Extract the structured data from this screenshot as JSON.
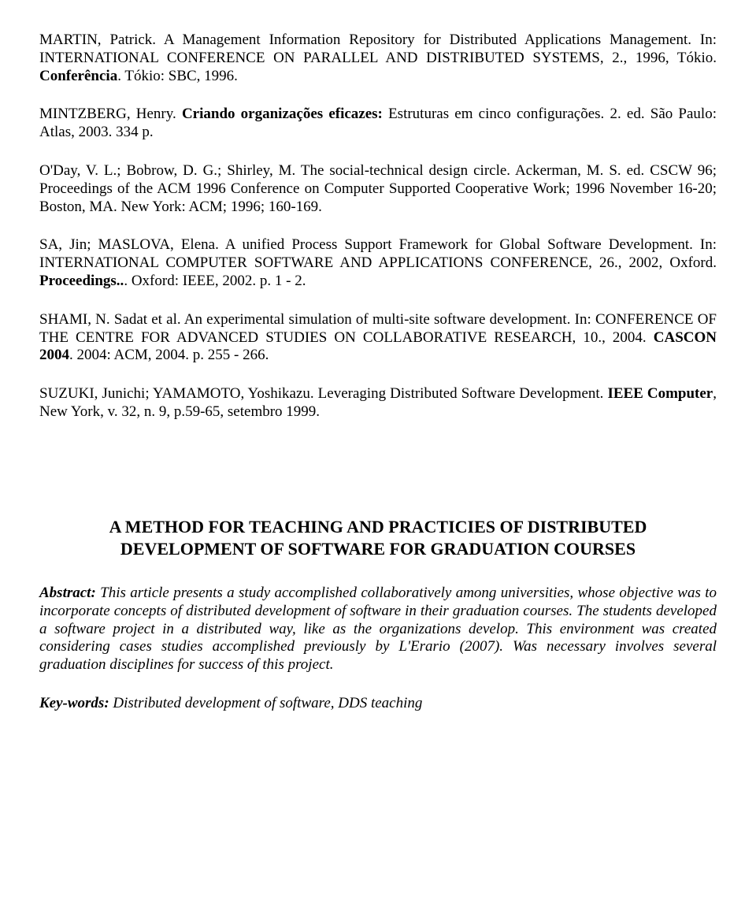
{
  "refs": {
    "r1a": "MARTIN, Patrick. A Management Information Repository for Distributed Applications Management. In: INTERNATIONAL CONFERENCE ON PARALLEL AND DISTRIBUTED SYSTEMS, 2., 1996, Tókio. ",
    "r1b": "Conferência",
    "r1c": ". Tókio: SBC, 1996.",
    "r2a": "MINTZBERG, Henry. ",
    "r2b": "Criando organizações eficazes:",
    "r2c": " Estruturas em cinco configurações. 2. ed. São Paulo: Atlas, 2003. 334 p.",
    "r3": "O'Day, V. L.; Bobrow, D. G.; Shirley, M. The social-technical design circle. Ackerman, M. S. ed. CSCW 96; Proceedings of the ACM 1996 Conference on Computer Supported Cooperative Work; 1996 November 16-20; Boston, MA. New York: ACM; 1996; 160-169.",
    "r4a": "SA, Jin; MASLOVA, Elena. A unified Process Support Framework for Global Software Development. In: INTERNATIONAL COMPUTER SOFTWARE AND APPLICATIONS CONFERENCE, 26., 2002, Oxford. ",
    "r4b": "Proceedings..",
    "r4c": ". Oxford: IEEE, 2002. p. 1 - 2.",
    "r5a": "SHAMI, N. Sadat et al. An experimental simulation of multi-site software development. In: CONFERENCE OF THE CENTRE FOR ADVANCED STUDIES ON COLLABORATIVE RESEARCH, 10., 2004. ",
    "r5b": "CASCON 2004",
    "r5c": ". 2004: ACM, 2004. p. 255 - 266.",
    "r6a": "SUZUKI, Junichi; YAMAMOTO, Yoshikazu. Leveraging Distributed Software Development. ",
    "r6b": "IEEE Computer",
    "r6c": ", New York, v. 32, n. 9, p.59-65, setembro 1999."
  },
  "title": "A METHOD FOR TEACHING AND PRACTICIES OF DISTRIBUTED DEVELOPMENT OF SOFTWARE FOR GRADUATION COURSES",
  "abstract_label": "Abstract:",
  "abstract_text": " This article presents a study accomplished collaboratively among universities, whose objective was to incorporate concepts of distributed development of software in their graduation courses. The students developed a software project in a distributed way, like as the organizations develop. This environment was created considering cases studies accomplished previously by L'Erario (2007). Was necessary involves several graduation disciplines for success of this project.",
  "keywords_label": "Key-words:",
  "keywords_text": " Distributed development of software, DDS teaching"
}
